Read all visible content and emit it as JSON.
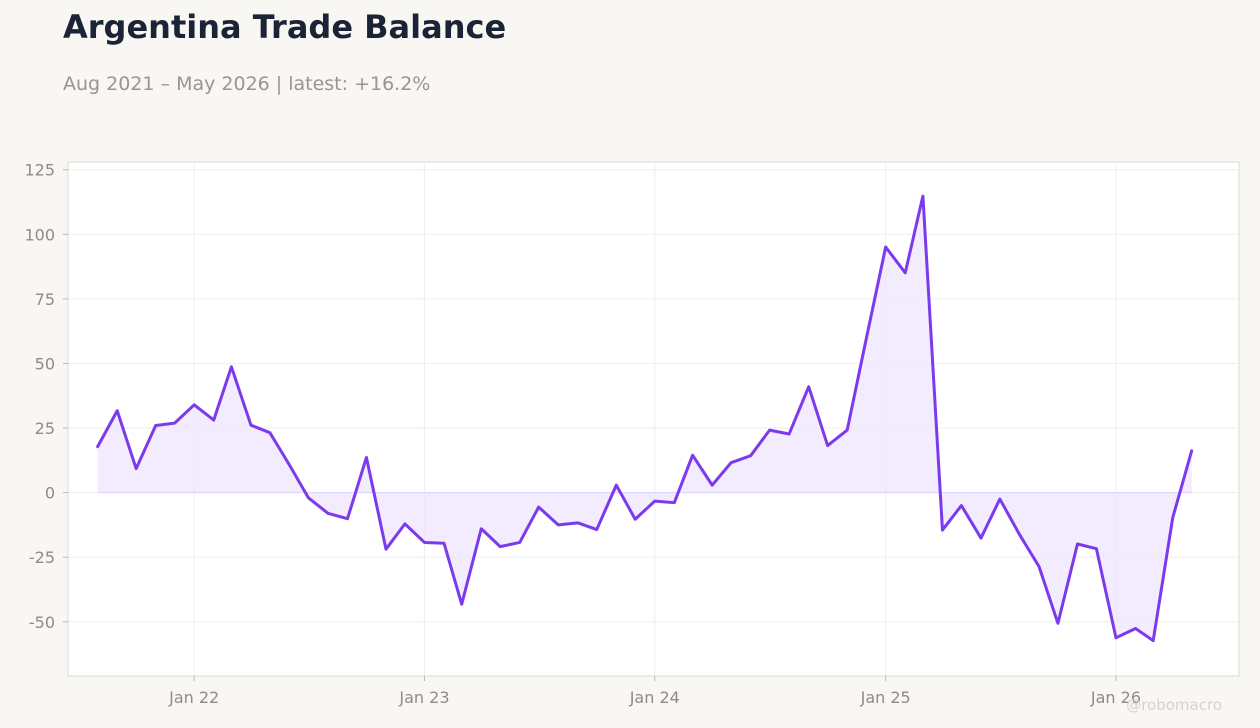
{
  "header": {
    "title": "Argentina Trade Balance",
    "subtitle": "Aug 2021 – May 2026 | latest: +16.2%"
  },
  "watermark": "@robomacro",
  "colors": {
    "line": "#7c3aed",
    "fill": "#ede6fd",
    "background": "#f8f7f4",
    "plot_background": "#ffffff",
    "grid": "#eeeeee",
    "frame": "#dddad3"
  },
  "chart_data": {
    "type": "area",
    "title": "Argentina Trade Balance",
    "subtitle": "Aug 2021 – May 2026 | latest: +16.2%",
    "xlabel": "",
    "ylabel": "",
    "grid": true,
    "legend": "none",
    "ylim": [
      -71,
      128
    ],
    "xlim": [
      "2021-06-15",
      "2026-07-15"
    ],
    "y_ticks": [
      -50,
      -25,
      0,
      25,
      50,
      75,
      100,
      125
    ],
    "x_ticks": [
      {
        "date": "2022-01-01",
        "label": "Jan 22"
      },
      {
        "date": "2023-01-01",
        "label": "Jan 23"
      },
      {
        "date": "2024-01-01",
        "label": "Jan 24"
      },
      {
        "date": "2025-01-01",
        "label": "Jan 25"
      },
      {
        "date": "2026-01-01",
        "label": "Jan 26"
      }
    ],
    "series": [
      {
        "x": [
          "2021-08",
          "2021-09",
          "2021-10",
          "2021-11",
          "2021-12",
          "2022-01",
          "2022-02",
          "2022-03",
          "2022-04",
          "2022-05",
          "2022-06",
          "2022-07",
          "2022-08",
          "2022-09",
          "2022-10",
          "2022-11",
          "2022-12",
          "2023-01",
          "2023-02",
          "2023-03",
          "2023-04",
          "2023-05",
          "2023-06",
          "2023-07",
          "2023-08",
          "2023-09",
          "2023-10",
          "2023-11",
          "2023-12",
          "2024-01",
          "2024-02",
          "2024-03",
          "2024-04",
          "2024-05",
          "2024-06",
          "2024-07",
          "2024-08",
          "2024-09",
          "2024-10",
          "2024-11",
          "2024-12",
          "2025-01",
          "2025-02",
          "2025-03",
          "2025-04",
          "2025-05",
          "2025-06",
          "2025-07",
          "2025-08",
          "2025-09",
          "2025-10",
          "2025-11",
          "2025-12",
          "2026-01",
          "2026-02",
          "2026-03",
          "2026-04",
          "2026-05"
        ],
        "values": [
          17.8,
          31.7,
          9.3,
          26.0,
          26.9,
          34.0,
          28.1,
          48.7,
          26.1,
          23.2,
          10.7,
          -2.0,
          -8.0,
          -10.1,
          13.6,
          -21.9,
          -12.1,
          -19.3,
          -19.6,
          -43.2,
          -14.0,
          -20.9,
          -19.3,
          -5.6,
          -12.5,
          -11.7,
          -14.3,
          2.9,
          -10.3,
          -3.3,
          -3.9,
          14.5,
          2.9,
          11.6,
          14.3,
          24.2,
          22.7,
          41.0,
          18.2,
          24.2,
          59.3,
          95.1,
          85.1,
          114.8,
          -14.5,
          -5.0,
          -17.6,
          -2.5,
          -16.2,
          -28.6,
          -50.6,
          -19.9,
          -21.7,
          -56.2,
          -52.6,
          -57.3,
          -9.7,
          16.2
        ]
      }
    ]
  }
}
